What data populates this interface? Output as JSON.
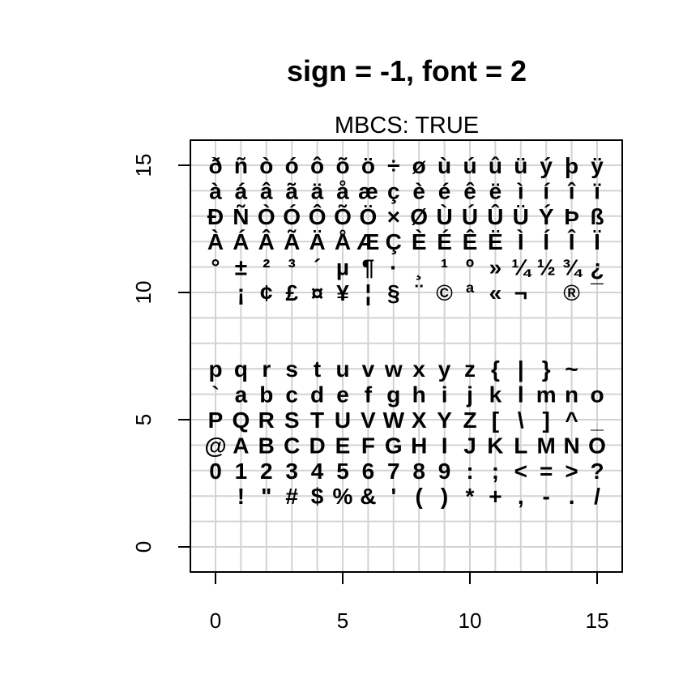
{
  "chart_data": {
    "type": "scatter",
    "title": "sign = -1, font = 2",
    "subtitle": "MBCS: TRUE",
    "xlabel": "",
    "ylabel": "",
    "xlim": [
      0,
      15
    ],
    "ylim": [
      0,
      15
    ],
    "x_ticks": [
      "0",
      "5",
      "10",
      "15"
    ],
    "y_ticks": [
      "0",
      "5",
      "10",
      "15"
    ],
    "grid": true,
    "rows": [
      {
        "y": 15,
        "glyphs": [
          "ð",
          "ñ",
          "ò",
          "ó",
          "ô",
          "õ",
          "ö",
          "÷",
          "ø",
          "ù",
          "ú",
          "û",
          "ü",
          "ý",
          "þ",
          "ÿ"
        ]
      },
      {
        "y": 14,
        "glyphs": [
          "à",
          "á",
          "â",
          "ã",
          "ä",
          "å",
          "æ",
          "ç",
          "è",
          "é",
          "ê",
          "ë",
          "ì",
          "í",
          "î",
          "ï"
        ]
      },
      {
        "y": 13,
        "glyphs": [
          "Ð",
          "Ñ",
          "Ò",
          "Ó",
          "Ô",
          "Õ",
          "Ö",
          "×",
          "Ø",
          "Ù",
          "Ú",
          "Û",
          "Ü",
          "Ý",
          "Þ",
          "ß"
        ]
      },
      {
        "y": 12,
        "glyphs": [
          "À",
          "Á",
          "Â",
          "Ã",
          "Ä",
          "Å",
          "Æ",
          "Ç",
          "È",
          "É",
          "Ê",
          "Ë",
          "Ì",
          "Í",
          "Î",
          "Ï"
        ]
      },
      {
        "y": 11,
        "glyphs": [
          "°",
          "±",
          "²",
          "³",
          "´",
          "µ",
          "¶",
          "·",
          "¸",
          "¹",
          "º",
          "»",
          "¼",
          "½",
          "¾",
          "¿"
        ]
      },
      {
        "y": 10,
        "glyphs": [
          "",
          "¡",
          "¢",
          "£",
          "¤",
          "¥",
          "¦",
          "§",
          "¨",
          "©",
          "ª",
          "«",
          "¬",
          "",
          "®",
          "¯"
        ]
      },
      {
        "y": 7,
        "glyphs": [
          "p",
          "q",
          "r",
          "s",
          "t",
          "u",
          "v",
          "w",
          "x",
          "y",
          "z",
          "{",
          "|",
          "}",
          "~",
          ""
        ]
      },
      {
        "y": 6,
        "glyphs": [
          "`",
          "a",
          "b",
          "c",
          "d",
          "e",
          "f",
          "g",
          "h",
          "i",
          "j",
          "k",
          "l",
          "m",
          "n",
          "o"
        ]
      },
      {
        "y": 5,
        "glyphs": [
          "P",
          "Q",
          "R",
          "S",
          "T",
          "U",
          "V",
          "W",
          "X",
          "Y",
          "Z",
          "[",
          "\\",
          "]",
          "^",
          "_"
        ]
      },
      {
        "y": 4,
        "glyphs": [
          "@",
          "A",
          "B",
          "C",
          "D",
          "E",
          "F",
          "G",
          "H",
          "I",
          "J",
          "K",
          "L",
          "M",
          "N",
          "O"
        ]
      },
      {
        "y": 3,
        "glyphs": [
          "0",
          "1",
          "2",
          "3",
          "4",
          "5",
          "6",
          "7",
          "8",
          "9",
          ":",
          ";",
          "<",
          "=",
          ">",
          "?"
        ]
      },
      {
        "y": 2,
        "glyphs": [
          "",
          " !",
          "\"",
          "#",
          "$",
          "%",
          "&",
          "'",
          "(",
          ")",
          "*",
          "+",
          ",",
          "-",
          ".",
          "/"
        ]
      }
    ]
  }
}
